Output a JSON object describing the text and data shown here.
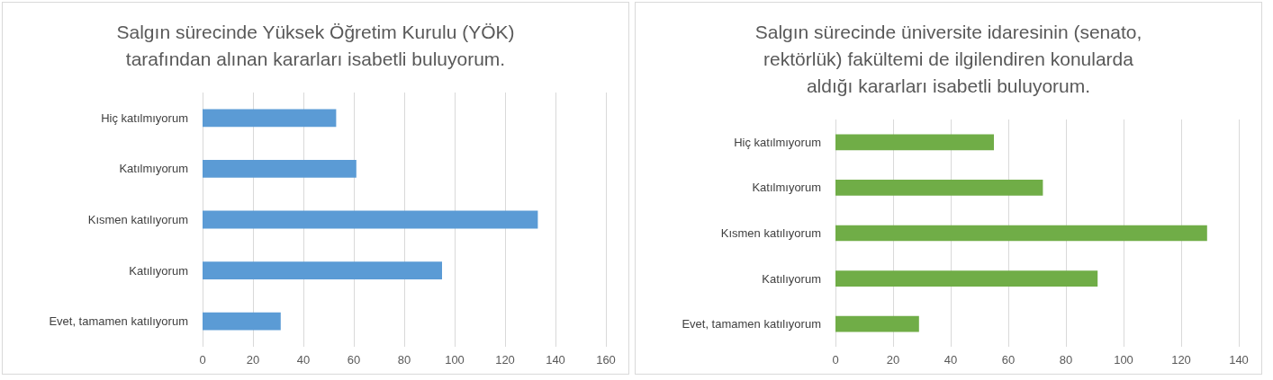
{
  "chart_data": [
    {
      "type": "bar",
      "orientation": "horizontal",
      "title": "Salgın sürecinde Yüksek Öğretim Kurulu (YÖK)\ntarafından alınan kararları isabetli buluyorum.",
      "categories": [
        "Hiç katılmıyorum",
        "Katılmıyorum",
        "Kısmen katılıyorum",
        "Katılıyorum",
        "Evet, tamamen katılıyorum"
      ],
      "values": [
        53,
        61,
        133,
        95,
        31
      ],
      "color": "#5b9bd5",
      "xlim": [
        0,
        160
      ],
      "xticks": [
        0,
        20,
        40,
        60,
        80,
        100,
        120,
        140,
        160
      ],
      "grid": "x"
    },
    {
      "type": "bar",
      "orientation": "horizontal",
      "title": "Salgın sürecinde üniversite idaresinin (senato,\nrektörlük) fakültemi de ilgilendiren konularda\naldığı kararları isabetli buluyorum.",
      "categories": [
        "Hiç katılmıyorum",
        "Katılmıyorum",
        "Kısmen katılıyorum",
        "Katılıyorum",
        "Evet, tamamen katılıyorum"
      ],
      "values": [
        55,
        72,
        129,
        91,
        29
      ],
      "color": "#70ad47",
      "xlim": [
        0,
        140
      ],
      "xticks": [
        0,
        20,
        40,
        60,
        80,
        100,
        120,
        140
      ],
      "grid": "x"
    }
  ]
}
